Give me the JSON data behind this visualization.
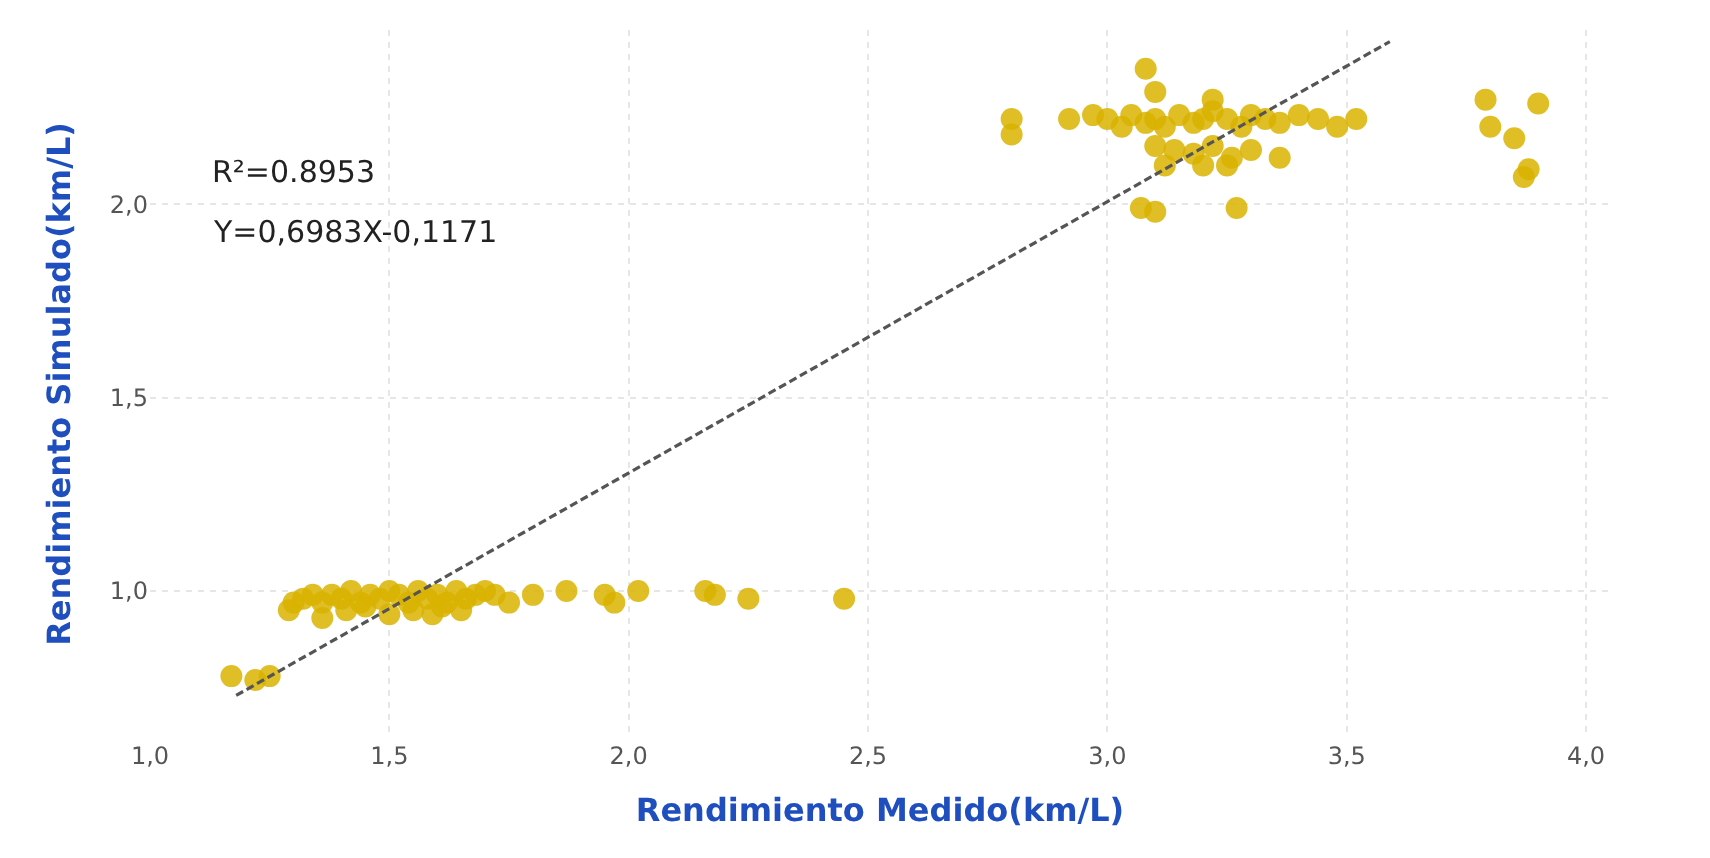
{
  "chart_data": {
    "type": "scatter",
    "xlabel": "Rendimiento Medido(km/L)",
    "ylabel": "Rendimiento Simulado(km/L)",
    "annotations": [
      "R²=0.8953",
      "Y=0,6983X-0,1171"
    ],
    "xlim": [
      1.0,
      4.05
    ],
    "ylim": [
      0.62,
      2.45
    ],
    "xticks": [
      {
        "value": 1.0,
        "label": "1,0"
      },
      {
        "value": 1.5,
        "label": "1,5"
      },
      {
        "value": 2.0,
        "label": "2,0"
      },
      {
        "value": 2.5,
        "label": "2,5"
      },
      {
        "value": 3.0,
        "label": "3,0"
      },
      {
        "value": 3.5,
        "label": "3,5"
      },
      {
        "value": 4.0,
        "label": "4,0"
      }
    ],
    "yticks": [
      {
        "value": 1.0,
        "label": "1,0"
      },
      {
        "value": 1.5,
        "label": "1,5"
      },
      {
        "value": 2.0,
        "label": "2,0"
      }
    ],
    "grid": true,
    "series": [
      {
        "marker": "circle",
        "color": "#d9b300",
        "x": [
          1.17,
          1.22,
          1.25,
          1.29,
          1.3,
          1.32,
          1.34,
          1.36,
          1.38,
          1.4,
          1.42,
          1.44,
          1.46,
          1.48,
          1.5,
          1.52,
          1.54,
          1.56,
          1.58,
          1.6,
          1.62,
          1.64,
          1.66,
          1.68,
          1.7,
          1.72,
          1.75,
          1.36,
          1.41,
          1.45,
          1.5,
          1.55,
          1.59,
          1.61,
          1.65,
          1.8,
          1.87,
          1.95,
          1.97,
          2.02,
          2.16,
          2.18,
          2.25,
          2.45,
          2.8,
          2.8,
          2.92,
          2.97,
          3.0,
          3.03,
          3.05,
          3.08,
          3.1,
          3.12,
          3.15,
          3.18,
          3.2,
          3.22,
          3.25,
          3.28,
          3.3,
          3.33,
          3.36,
          3.4,
          3.44,
          3.48,
          3.52,
          3.1,
          3.14,
          3.18,
          3.22,
          3.26,
          3.3,
          3.12,
          3.2,
          3.25,
          3.36,
          3.07,
          3.1,
          3.27,
          3.08,
          3.1,
          3.22,
          3.79,
          3.8,
          3.85,
          3.9,
          3.88,
          3.87
        ],
        "values": [
          0.78,
          0.77,
          0.78,
          0.95,
          0.97,
          0.98,
          0.99,
          0.97,
          0.99,
          0.98,
          1.0,
          0.97,
          0.99,
          0.98,
          1.0,
          0.99,
          0.97,
          1.0,
          0.98,
          0.99,
          0.97,
          1.0,
          0.98,
          0.99,
          1.0,
          0.99,
          0.97,
          0.93,
          0.95,
          0.96,
          0.94,
          0.95,
          0.94,
          0.96,
          0.95,
          0.99,
          1.0,
          0.99,
          0.97,
          1.0,
          1.0,
          0.99,
          0.98,
          0.98,
          2.22,
          2.18,
          2.22,
          2.23,
          2.22,
          2.2,
          2.23,
          2.21,
          2.22,
          2.2,
          2.23,
          2.21,
          2.22,
          2.24,
          2.22,
          2.2,
          2.23,
          2.22,
          2.21,
          2.23,
          2.22,
          2.2,
          2.22,
          2.15,
          2.14,
          2.13,
          2.15,
          2.12,
          2.14,
          2.1,
          2.1,
          2.1,
          2.12,
          1.99,
          1.98,
          1.99,
          2.35,
          2.29,
          2.27,
          2.27,
          2.2,
          2.17,
          2.26,
          2.09,
          2.07
        ]
      },
      {
        "type": "line",
        "color": "#555555",
        "line_style": "dashed",
        "x": [
          1.18,
          3.59
        ],
        "values": [
          0.73,
          2.42
        ]
      }
    ]
  }
}
